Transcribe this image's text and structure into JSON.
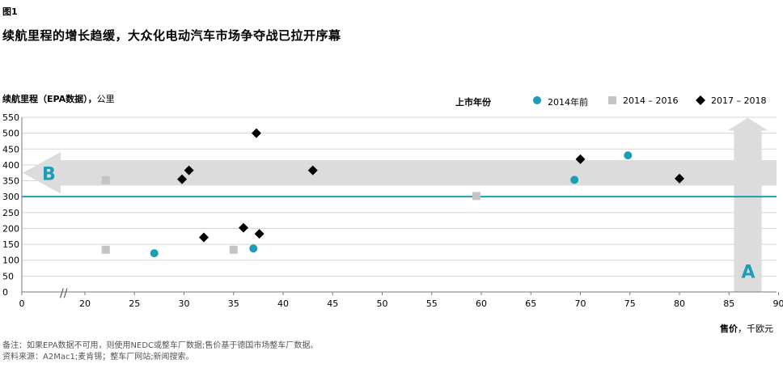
{
  "figure_label": "图1",
  "title": "续航里程的增长趋缓，大众化电动汽车市场争夺战已拉开序幕",
  "note_line1": "备注：如果EPA数据不可用，则使用NEDC或整车厂数据;售价基于德国市场整车厂数据。",
  "note_line2": "资料来源：A2Mac1;麦肯锡；整车厂网站;新闻搜索。",
  "colors": {
    "teal": "#1a9db5",
    "gray": "#c4c4c4",
    "black": "#000000",
    "arrow": "#dcdcdc",
    "axis": "#7a7a7a"
  },
  "chart_data": {
    "type": "scatter",
    "ylabel_bold": "续航里程（EPA数据），",
    "ylabel_unit": "公里",
    "xlabel_bold": "售价",
    "xlabel_unit": "，千欧元",
    "legend_title": "上市年份",
    "xlim": [
      0,
      90
    ],
    "ylim": [
      0,
      550
    ],
    "xticks": [
      0,
      20,
      25,
      30,
      35,
      40,
      45,
      50,
      55,
      60,
      65,
      70,
      75,
      80,
      85,
      90
    ],
    "yticks": [
      0,
      50,
      100,
      150,
      200,
      250,
      300,
      350,
      400,
      450,
      500,
      550
    ],
    "axis_break": "//",
    "reference_line_y": 300,
    "arrow_b_label": "B",
    "arrow_a_label": "A",
    "series": [
      {
        "name": "2014年前",
        "marker": "circle",
        "color": "#1a9db5",
        "points": [
          [
            27,
            122
          ],
          [
            37,
            137
          ],
          [
            69.4,
            353
          ],
          [
            74.8,
            430
          ]
        ]
      },
      {
        "name": "2014 – 2016",
        "marker": "square",
        "color": "#c4c4c4",
        "points": [
          [
            22.1,
            352
          ],
          [
            22.1,
            133
          ],
          [
            35,
            133
          ],
          [
            59.5,
            302
          ]
        ]
      },
      {
        "name": "2017 – 2018",
        "marker": "diamond",
        "color": "#000000",
        "points": [
          [
            29.8,
            355
          ],
          [
            30.5,
            383
          ],
          [
            32,
            172
          ],
          [
            36,
            202
          ],
          [
            37.3,
            500
          ],
          [
            37.6,
            183
          ],
          [
            43,
            383
          ],
          [
            70,
            418
          ],
          [
            80,
            357
          ]
        ]
      }
    ]
  }
}
